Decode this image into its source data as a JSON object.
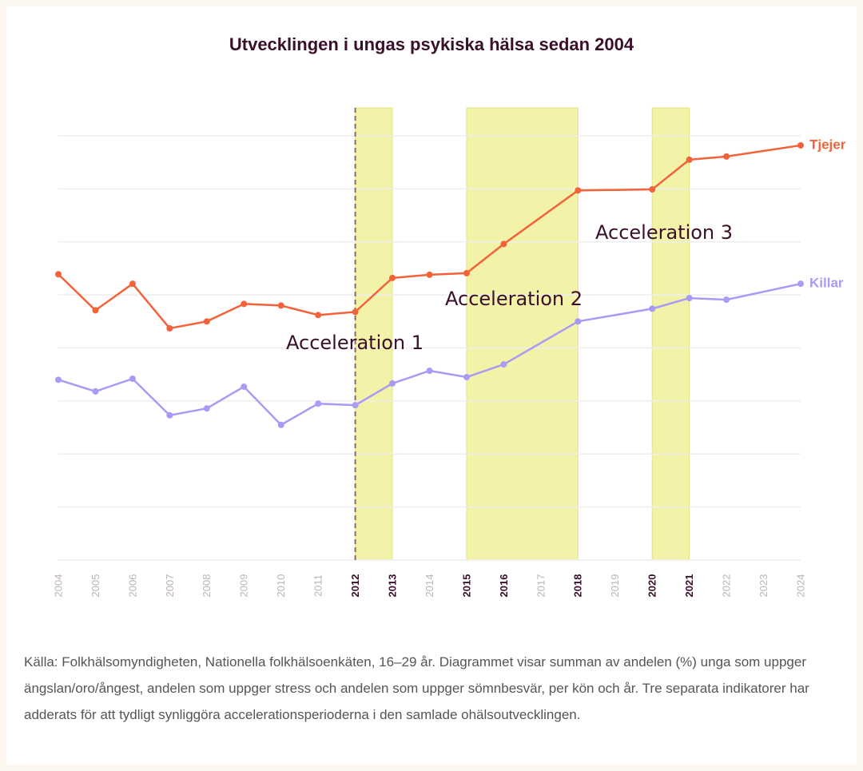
{
  "chart_data": {
    "type": "line",
    "title": "Utvecklingen i ungas psykiska hälsa sedan 2004",
    "x": [
      2004,
      2005,
      2006,
      2007,
      2008,
      2009,
      2010,
      2011,
      2012,
      2013,
      2014,
      2015,
      2016,
      2018,
      2020,
      2021,
      2022,
      2024
    ],
    "series": [
      {
        "name": "Tjejer",
        "color": "#f4623a",
        "values": [
          5.39,
          4.71,
          5.21,
          4.37,
          4.5,
          4.83,
          4.8,
          4.62,
          4.68,
          5.32,
          5.38,
          5.41,
          5.96,
          6.97,
          6.99,
          7.55,
          7.61,
          7.82
        ]
      },
      {
        "name": "Killar",
        "color": "#a99af5",
        "values": [
          3.4,
          3.18,
          3.42,
          2.73,
          2.86,
          3.27,
          2.55,
          2.95,
          2.92,
          3.33,
          3.57,
          3.45,
          3.69,
          4.5,
          4.74,
          4.94,
          4.91,
          5.21
        ]
      }
    ],
    "xlim": [
      2004,
      2024
    ],
    "xticks": [
      2004,
      2005,
      2006,
      2007,
      2008,
      2009,
      2010,
      2011,
      2012,
      2013,
      2014,
      2015,
      2016,
      2017,
      2018,
      2019,
      2020,
      2021,
      2022,
      2023,
      2024
    ],
    "bold_xticks": [
      2012,
      2013,
      2015,
      2016,
      2018,
      2020,
      2021
    ],
    "ylim": [
      0,
      8
    ],
    "yticks": [
      0,
      1,
      2,
      3,
      4,
      5,
      6,
      7,
      8
    ],
    "grid": true,
    "highlight_periods": [
      [
        2012,
        2013
      ],
      [
        2015,
        2018
      ],
      [
        2020,
        2021
      ]
    ],
    "highlight_color": "#f2f2a8",
    "dashed_line_x": 2012,
    "annotations": [
      "Acceleration 1",
      "Acceleration 2",
      "Acceleration 3"
    ],
    "note": "Källa: Folkhälsomyndigheten, Nationella folkhälsoenkäten, 16–29 år. Diagrammet visar summan av andelen (%) unga som uppger ängslan/oro/ångest, andelen som uppger stress och andelen som uppger sömnbesvär, per kön och år. Tre separata indikatorer har adderats för att tydligt synliggöra accelerationsperioderna i den samlade ohälsoutvecklingen."
  }
}
